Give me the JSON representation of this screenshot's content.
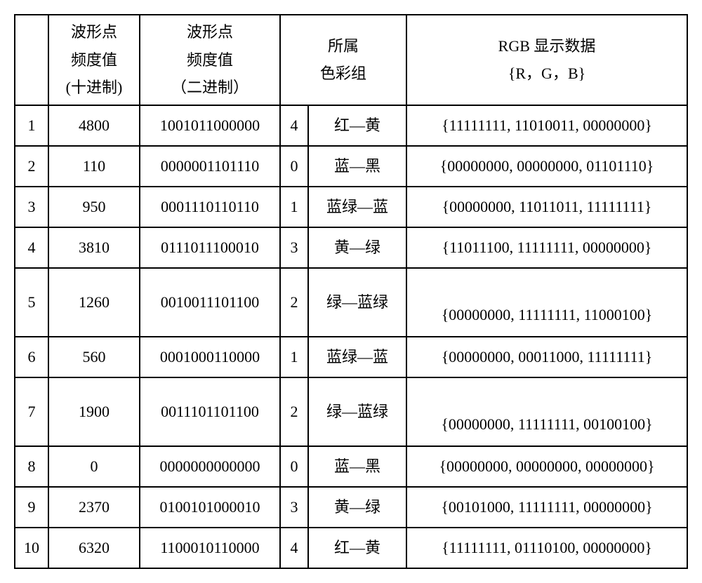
{
  "columns": {
    "c0": "",
    "c1_l1": "波形点",
    "c1_l2": "频度值",
    "c1_l3": "(十进制)",
    "c2_l1": "波形点",
    "c2_l2": "频度值",
    "c2_l3": "（二进制）",
    "c3_l1": "所属",
    "c3_l2": "色彩组",
    "c4_l1": "RGB 显示数据",
    "c4_l2": "{R，G，B}"
  },
  "widths": {
    "c0": 48,
    "c1": 130,
    "c2": 200,
    "c3a": 40,
    "c3b": 140,
    "c4": 400
  },
  "rows": [
    {
      "idx": "1",
      "dec": "4800",
      "bin": "1001011000000",
      "grp": "4",
      "color": "红—黄",
      "rgb": "{11111111, 11010011, 00000000}",
      "tall": false,
      "rgb_bottom": false
    },
    {
      "idx": "2",
      "dec": "110",
      "bin": "0000001101110",
      "grp": "0",
      "color": "蓝—黑",
      "rgb": "{00000000, 00000000, 01101110}",
      "tall": false,
      "rgb_bottom": false
    },
    {
      "idx": "3",
      "dec": "950",
      "bin": "0001110110110",
      "grp": "1",
      "color": "蓝绿—蓝",
      "rgb": "{00000000, 11011011, 11111111}",
      "tall": false,
      "rgb_bottom": false
    },
    {
      "idx": "4",
      "dec": "3810",
      "bin": "0111011100010",
      "grp": "3",
      "color": "黄—绿",
      "rgb": "{11011100, 11111111, 00000000}",
      "tall": false,
      "rgb_bottom": false
    },
    {
      "idx": "5",
      "dec": "1260",
      "bin": "0010011101100",
      "grp": "2",
      "color": "绿—蓝绿",
      "rgb": "{00000000, 11111111, 11000100}",
      "tall": true,
      "rgb_bottom": true
    },
    {
      "idx": "6",
      "dec": "560",
      "bin": "0001000110000",
      "grp": "1",
      "color": "蓝绿—蓝",
      "rgb": "{00000000, 00011000, 11111111}",
      "tall": false,
      "rgb_bottom": false
    },
    {
      "idx": "7",
      "dec": "1900",
      "bin": "0011101101100",
      "grp": "2",
      "color": "绿—蓝绿",
      "rgb": "{00000000, 11111111, 00100100}",
      "tall": true,
      "rgb_bottom": true
    },
    {
      "idx": "8",
      "dec": "0",
      "bin": "0000000000000",
      "grp": "0",
      "color": "蓝—黑",
      "rgb": "{00000000, 00000000, 00000000}",
      "tall": false,
      "rgb_bottom": false
    },
    {
      "idx": "9",
      "dec": "2370",
      "bin": "0100101000010",
      "grp": "3",
      "color": "黄—绿",
      "rgb": "{00101000, 11111111, 00000000}",
      "tall": false,
      "rgb_bottom": false
    },
    {
      "idx": "10",
      "dec": "6320",
      "bin": "1100010110000",
      "grp": "4",
      "color": "红—黄",
      "rgb": "{11111111, 01110100, 00000000}",
      "tall": false,
      "rgb_bottom": false
    }
  ]
}
